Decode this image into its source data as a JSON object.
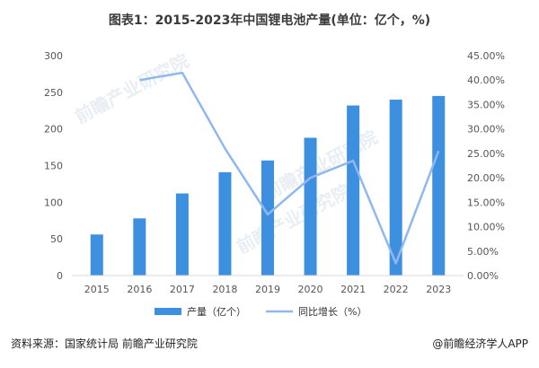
{
  "title": "图表1：2015-2023年中国锂电池产量(单位：亿个，%)",
  "source": "资料来源：国家统计局 前瞻产业研究院",
  "credit": "@前瞻经济学人APP",
  "watermark": "前瞻产业研究院",
  "colors": {
    "bar": "#3d8fe0",
    "line": "#8fb8f0",
    "axis_text": "#555555"
  },
  "chart_data": {
    "type": "bar",
    "categories": [
      "2015",
      "2016",
      "2017",
      "2018",
      "2019",
      "2020",
      "2021",
      "2022",
      "2023"
    ],
    "series": [
      {
        "name": "产量（亿个）",
        "kind": "bar",
        "axis": "left",
        "values": [
          56,
          78,
          112,
          141,
          157,
          188,
          232,
          240,
          245
        ]
      },
      {
        "name": "同比增长（%）",
        "kind": "line",
        "axis": "right",
        "values": [
          null,
          40.0,
          41.5,
          26.0,
          12.5,
          20.0,
          23.5,
          2.5,
          25.5
        ]
      }
    ],
    "ylim_left": [
      0,
      300
    ],
    "yticks_left": [
      "0",
      "50",
      "100",
      "150",
      "200",
      "250",
      "300"
    ],
    "ylim_right": [
      0,
      45
    ],
    "yticks_right": [
      "0.00%",
      "5.00%",
      "10.00%",
      "15.00%",
      "20.00%",
      "25.00%",
      "30.00%",
      "35.00%",
      "40.00%",
      "45.00%"
    ],
    "legend_position": "bottom",
    "grid": false
  }
}
